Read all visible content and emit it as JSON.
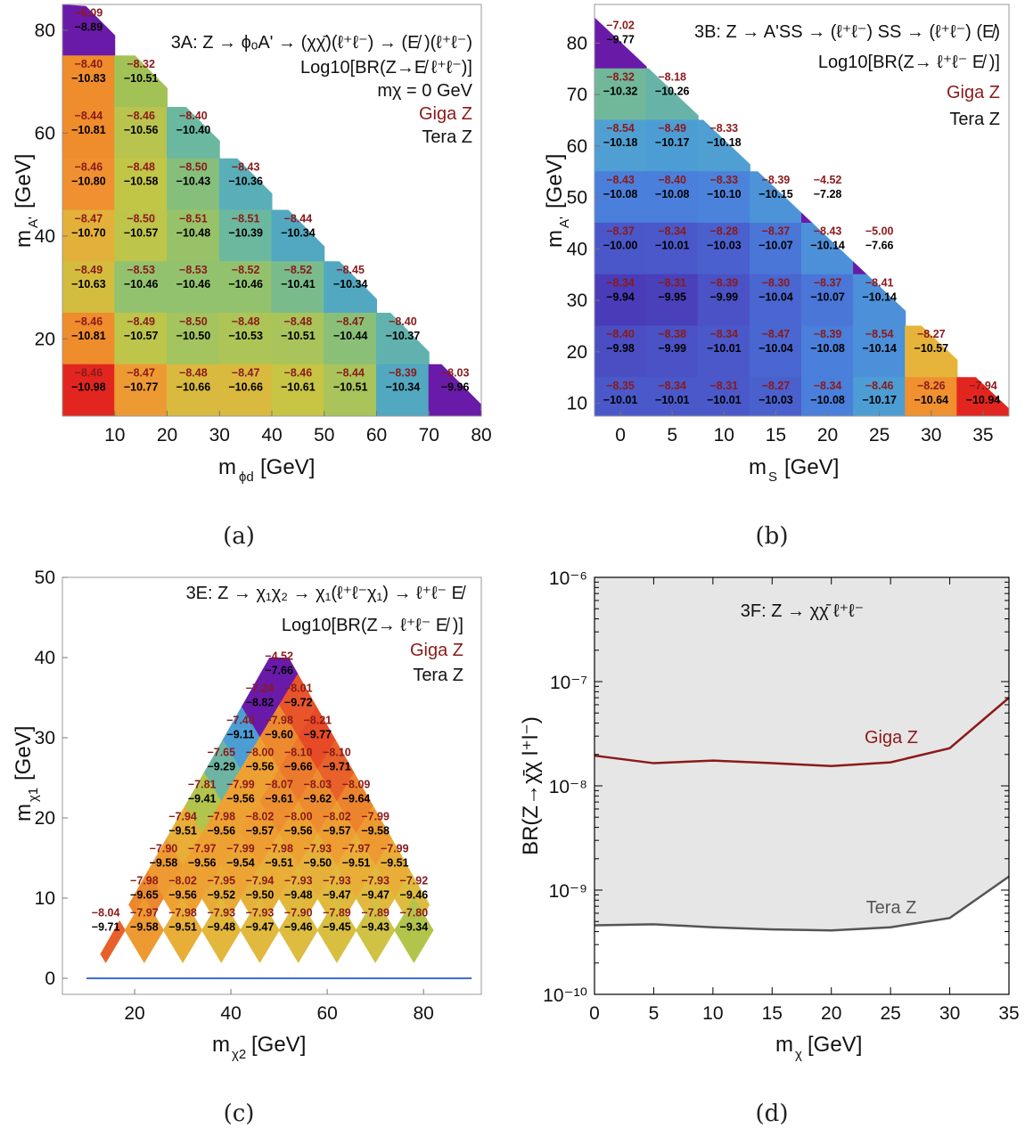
{
  "captions": [
    "(a)",
    "(b)",
    "(c)",
    "(d)"
  ],
  "chart_data": [
    {
      "id": "a",
      "type": "heatmap",
      "xlabel": "m",
      "xlabel_sub": "ϕd",
      "xlabel_unit": "[GeV]",
      "ylabel": "m",
      "ylabel_sub": "A'",
      "ylabel_unit": "[GeV]",
      "xlim": [
        0,
        80
      ],
      "ylim": [
        5,
        85
      ],
      "xticks": [
        10,
        20,
        30,
        40,
        50,
        60,
        70,
        80
      ],
      "yticks": [
        20,
        40,
        60,
        80
      ],
      "annotations": [
        "3A: Z → ϕₒA' → (χχ̄)(ℓ⁺ℓ⁻)  →  (E̸ )(ℓ⁺ℓ⁻)",
        "Log10[BR(Z→E̸ ℓ⁺ℓ⁻)]",
        "mχ = 0 GeV",
        "Giga Z",
        "Tera Z"
      ],
      "cells": [
        {
          "x": 5,
          "y": 80,
          "g": "−6.09",
          "t": "−8.89",
          "c": "#6a1aa8"
        },
        {
          "x": 5,
          "y": 70,
          "g": "−8.40",
          "t": "−10.83",
          "c": "#ef8c2c"
        },
        {
          "x": 15,
          "y": 70,
          "g": "−8.32",
          "t": "−10.51",
          "c": "#a3c255"
        },
        {
          "x": 5,
          "y": 60,
          "g": "−8.44",
          "t": "−10.81",
          "c": "#ef8c2c"
        },
        {
          "x": 15,
          "y": 60,
          "g": "−8.46",
          "t": "−10.56",
          "c": "#b8c44d"
        },
        {
          "x": 25,
          "y": 60,
          "g": "−8.40",
          "t": "−10.40",
          "c": "#6bb8a0"
        },
        {
          "x": 5,
          "y": 50,
          "g": "−8.46",
          "t": "−10.80",
          "c": "#f09030"
        },
        {
          "x": 15,
          "y": 50,
          "g": "−8.48",
          "t": "−10.58",
          "c": "#c2c647"
        },
        {
          "x": 25,
          "y": 50,
          "g": "−8.50",
          "t": "−10.43",
          "c": "#86bf7c"
        },
        {
          "x": 35,
          "y": 50,
          "g": "−8.43",
          "t": "−10.36",
          "c": "#5aaeb8"
        },
        {
          "x": 5,
          "y": 40,
          "g": "−8.47",
          "t": "−10.70",
          "c": "#e3b13a"
        },
        {
          "x": 15,
          "y": 40,
          "g": "−8.50",
          "t": "−10.57",
          "c": "#bdc54a"
        },
        {
          "x": 25,
          "y": 40,
          "g": "−8.51",
          "t": "−10.48",
          "c": "#98c268"
        },
        {
          "x": 35,
          "y": 40,
          "g": "−8.51",
          "t": "−10.39",
          "c": "#6cb89f"
        },
        {
          "x": 45,
          "y": 40,
          "g": "−8.44",
          "t": "−10.34",
          "c": "#51a8c0"
        },
        {
          "x": 5,
          "y": 30,
          "g": "−8.49",
          "t": "−10.63",
          "c": "#d4bd3e"
        },
        {
          "x": 15,
          "y": 30,
          "g": "−8.53",
          "t": "−10.46",
          "c": "#93c26e"
        },
        {
          "x": 25,
          "y": 30,
          "g": "−8.53",
          "t": "−10.46",
          "c": "#93c26e"
        },
        {
          "x": 35,
          "y": 30,
          "g": "−8.52",
          "t": "−10.46",
          "c": "#93c26e"
        },
        {
          "x": 45,
          "y": 30,
          "g": "−8.52",
          "t": "−10.41",
          "c": "#7abb8c"
        },
        {
          "x": 55,
          "y": 30,
          "g": "−8.45",
          "t": "−10.34",
          "c": "#51a8c0"
        },
        {
          "x": 5,
          "y": 20,
          "g": "−8.46",
          "t": "−10.81",
          "c": "#ef8c2c"
        },
        {
          "x": 15,
          "y": 20,
          "g": "−8.49",
          "t": "−10.57",
          "c": "#bdc54a"
        },
        {
          "x": 25,
          "y": 20,
          "g": "−8.50",
          "t": "−10.50",
          "c": "#a3c45e"
        },
        {
          "x": 35,
          "y": 20,
          "g": "−8.48",
          "t": "−10.53",
          "c": "#adc556"
        },
        {
          "x": 45,
          "y": 20,
          "g": "−8.48",
          "t": "−10.51",
          "c": "#a8c45a"
        },
        {
          "x": 55,
          "y": 20,
          "g": "−8.47",
          "t": "−10.44",
          "c": "#8abf78"
        },
        {
          "x": 65,
          "y": 20,
          "g": "−8.40",
          "t": "−10.37",
          "c": "#61b2ae"
        },
        {
          "x": 5,
          "y": 10,
          "g": "−8.46",
          "t": "−10.98",
          "c": "#e2261f"
        },
        {
          "x": 15,
          "y": 10,
          "g": "−8.47",
          "t": "−10.77",
          "c": "#ee9a33"
        },
        {
          "x": 25,
          "y": 10,
          "g": "−8.48",
          "t": "−10.66",
          "c": "#d9ba3f"
        },
        {
          "x": 35,
          "y": 10,
          "g": "−8.47",
          "t": "−10.66",
          "c": "#d9ba3f"
        },
        {
          "x": 45,
          "y": 10,
          "g": "−8.46",
          "t": "−10.61",
          "c": "#c8c444"
        },
        {
          "x": 55,
          "y": 10,
          "g": "−8.44",
          "t": "−10.51",
          "c": "#a8c45a"
        },
        {
          "x": 65,
          "y": 10,
          "g": "−8.39",
          "t": "−10.34",
          "c": "#51a8c0"
        },
        {
          "x": 75,
          "y": 10,
          "g": "−8.03",
          "t": "−9.96",
          "c": "#6a1aa8"
        }
      ]
    },
    {
      "id": "b",
      "type": "heatmap",
      "xlabel": "m",
      "xlabel_sub": "S",
      "xlabel_unit": "[GeV]",
      "ylabel": "m",
      "ylabel_sub": "A'",
      "ylabel_unit": "[GeV]",
      "xlim": [
        -2.5,
        37.5
      ],
      "ylim": [
        7.5,
        87.5
      ],
      "xticks": [
        0,
        5,
        10,
        15,
        20,
        25,
        30,
        35
      ],
      "yticks": [
        10,
        20,
        30,
        40,
        50,
        60,
        70,
        80
      ],
      "annotations": [
        "3B: Z → A'SS → (ℓ⁺ℓ⁻) SS → (ℓ⁺ℓ⁻) (E̸)",
        "Log10[BR(Z→ ℓ⁺ℓ⁻ E̸ )]",
        "Giga Z",
        "Tera Z"
      ],
      "cells": [
        {
          "x": 0,
          "y": 80,
          "g": "−7.02",
          "t": "−9.77",
          "c": "#6a1aa8"
        },
        {
          "x": 0,
          "y": 70,
          "g": "−8.32",
          "t": "−10.32",
          "c": "#71b89b"
        },
        {
          "x": 5,
          "y": 70,
          "g": "−8.18",
          "t": "−10.26",
          "c": "#67b3a8"
        },
        {
          "x": 0,
          "y": 60,
          "g": "−8.54",
          "t": "−10.18",
          "c": "#4f9fd2"
        },
        {
          "x": 5,
          "y": 60,
          "g": "−8.49",
          "t": "−10.17",
          "c": "#4d9dd5"
        },
        {
          "x": 10,
          "y": 60,
          "g": "−8.33",
          "t": "−10.18",
          "c": "#4f9fd2"
        },
        {
          "x": 0,
          "y": 50,
          "g": "−8.43",
          "t": "−10.08",
          "c": "#4a7fdb"
        },
        {
          "x": 5,
          "y": 50,
          "g": "−8.40",
          "t": "−10.08",
          "c": "#4a7fdb"
        },
        {
          "x": 10,
          "y": 50,
          "g": "−8.33",
          "t": "−10.10",
          "c": "#4b83dc"
        },
        {
          "x": 15,
          "y": 50,
          "g": "−8.39",
          "t": "−10.15",
          "c": "#4c93d8"
        },
        {
          "x": 20,
          "y": 50,
          "g": "−4.52",
          "t": "−7.28",
          "c": "#6a1aa8"
        },
        {
          "x": 0,
          "y": 40,
          "g": "−8.37",
          "t": "−10.00",
          "c": "#4a57c8"
        },
        {
          "x": 5,
          "y": 40,
          "g": "−8.34",
          "t": "−10.01",
          "c": "#4a58c9"
        },
        {
          "x": 10,
          "y": 40,
          "g": "−8.28",
          "t": "−10.03",
          "c": "#4a60cd"
        },
        {
          "x": 15,
          "y": 40,
          "g": "−8.37",
          "t": "−10.07",
          "c": "#4a76d8"
        },
        {
          "x": 20,
          "y": 40,
          "g": "−8.43",
          "t": "−10.14",
          "c": "#4c90d9"
        },
        {
          "x": 25,
          "y": 40,
          "g": "−5.00",
          "t": "−7.66",
          "c": "#6a1aa8"
        },
        {
          "x": 0,
          "y": 30,
          "g": "−8.34",
          "t": "−9.94",
          "c": "#4a3cb8"
        },
        {
          "x": 5,
          "y": 30,
          "g": "−8.31",
          "t": "−9.95",
          "c": "#4a40ba"
        },
        {
          "x": 10,
          "y": 30,
          "g": "−8.39",
          "t": "−9.99",
          "c": "#4a52c5"
        },
        {
          "x": 15,
          "y": 30,
          "g": "−8.30",
          "t": "−10.04",
          "c": "#4a66d0"
        },
        {
          "x": 20,
          "y": 30,
          "g": "−8.37",
          "t": "−10.07",
          "c": "#4a76d8"
        },
        {
          "x": 25,
          "y": 30,
          "g": "−8.41",
          "t": "−10.14",
          "c": "#4c90d9"
        },
        {
          "x": 0,
          "y": 20,
          "g": "−8.40",
          "t": "−9.98",
          "c": "#4a4ec2"
        },
        {
          "x": 5,
          "y": 20,
          "g": "−8.38",
          "t": "−9.99",
          "c": "#4a52c5"
        },
        {
          "x": 10,
          "y": 20,
          "g": "−8.34",
          "t": "−10.01",
          "c": "#4a58c9"
        },
        {
          "x": 15,
          "y": 20,
          "g": "−8.47",
          "t": "−10.04",
          "c": "#4a66d0"
        },
        {
          "x": 20,
          "y": 20,
          "g": "−8.39",
          "t": "−10.08",
          "c": "#4a7fdb"
        },
        {
          "x": 25,
          "y": 20,
          "g": "−8.54",
          "t": "−10.14",
          "c": "#4c90d9"
        },
        {
          "x": 30,
          "y": 20,
          "g": "−8.27",
          "t": "−10.57",
          "c": "#e6b43a"
        },
        {
          "x": 0,
          "y": 10,
          "g": "−8.35",
          "t": "−10.01",
          "c": "#4a58c9"
        },
        {
          "x": 5,
          "y": 10,
          "g": "−8.34",
          "t": "−10.01",
          "c": "#4a58c9"
        },
        {
          "x": 10,
          "y": 10,
          "g": "−8.31",
          "t": "−10.01",
          "c": "#4a58c9"
        },
        {
          "x": 15,
          "y": 10,
          "g": "−8.27",
          "t": "−10.03",
          "c": "#4a60cd"
        },
        {
          "x": 20,
          "y": 10,
          "g": "−8.34",
          "t": "−10.08",
          "c": "#4a7fdb"
        },
        {
          "x": 25,
          "y": 10,
          "g": "−8.46",
          "t": "−10.17",
          "c": "#4d9dd5"
        },
        {
          "x": 30,
          "y": 10,
          "g": "−8.26",
          "t": "−10.64",
          "c": "#f0902e"
        },
        {
          "x": 35,
          "y": 10,
          "g": "−7.94",
          "t": "−10.94",
          "c": "#e2261f"
        }
      ]
    },
    {
      "id": "c",
      "type": "heatmap",
      "xlabel": "m",
      "xlabel_sub": "χ2",
      "xlabel_unit": "[GeV]",
      "ylabel": "m",
      "ylabel_sub": "χ1",
      "ylabel_unit": "[GeV]",
      "xlim": [
        5,
        92
      ],
      "ylim": [
        -2,
        50
      ],
      "xticks": [
        20,
        40,
        60,
        80
      ],
      "yticks": [
        0,
        10,
        20,
        30,
        40,
        50
      ],
      "annotations": [
        "3E: Z → χ₁χ₂  →  χ₁(ℓ⁺ℓ⁻χ₁)  →  ℓ⁺ℓ⁻ E̸",
        "Log10[BR(Z→  ℓ⁺ℓ⁻ E̸ )]",
        "Giga Z",
        "Tera Z"
      ],
      "cells": [
        {
          "x": 50,
          "y": 38,
          "g": "−4.52",
          "t": "−7.66",
          "c": "#6a1aa8"
        },
        {
          "x": 46,
          "y": 34,
          "g": "−7.24",
          "t": "−8.82",
          "c": "#6a1aa8"
        },
        {
          "x": 54,
          "y": 34,
          "g": "−8.01",
          "t": "−9.72",
          "c": "#e8552a"
        },
        {
          "x": 42,
          "y": 30,
          "g": "−7.40",
          "t": "−9.11",
          "c": "#4d9dd5"
        },
        {
          "x": 50,
          "y": 30,
          "g": "−7.98",
          "t": "−9.60",
          "c": "#ed8a2f"
        },
        {
          "x": 58,
          "y": 30,
          "g": "−8.21",
          "t": "−9.77",
          "c": "#e64a26"
        },
        {
          "x": 38,
          "y": 26,
          "g": "−7.65",
          "t": "−9.29",
          "c": "#6db5a2"
        },
        {
          "x": 46,
          "y": 26,
          "g": "−8.00",
          "t": "−9.56",
          "c": "#eea133"
        },
        {
          "x": 54,
          "y": 26,
          "g": "−8.10",
          "t": "−9.66",
          "c": "#eb7a2c"
        },
        {
          "x": 62,
          "y": 26,
          "g": "−8.10",
          "t": "−9.71",
          "c": "#e8602a"
        },
        {
          "x": 34,
          "y": 22,
          "g": "−7.81",
          "t": "−9.41",
          "c": "#b3c44d"
        },
        {
          "x": 42,
          "y": 22,
          "g": "−7.99",
          "t": "−9.56",
          "c": "#eea133"
        },
        {
          "x": 50,
          "y": 22,
          "g": "−8.07",
          "t": "−9.61",
          "c": "#ed8f30"
        },
        {
          "x": 58,
          "y": 22,
          "g": "−8.03",
          "t": "−9.62",
          "c": "#ed8c2f"
        },
        {
          "x": 66,
          "y": 22,
          "g": "−8.09",
          "t": "−9.64",
          "c": "#ec842e"
        },
        {
          "x": 30,
          "y": 18,
          "g": "−7.94",
          "t": "−9.51",
          "c": "#e8ae38"
        },
        {
          "x": 38,
          "y": 18,
          "g": "−7.98",
          "t": "−9.56",
          "c": "#eea133"
        },
        {
          "x": 46,
          "y": 18,
          "g": "−8.02",
          "t": "−9.57",
          "c": "#ee9d32"
        },
        {
          "x": 54,
          "y": 18,
          "g": "−8.00",
          "t": "−9.56",
          "c": "#eea133"
        },
        {
          "x": 62,
          "y": 18,
          "g": "−8.02",
          "t": "−9.57",
          "c": "#ee9d32"
        },
        {
          "x": 70,
          "y": 18,
          "g": "−7.99",
          "t": "−9.58",
          "c": "#ee9a32"
        },
        {
          "x": 26,
          "y": 14,
          "g": "−7.90",
          "t": "−9.58",
          "c": "#ee9a32"
        },
        {
          "x": 34,
          "y": 14,
          "g": "−7.97",
          "t": "−9.56",
          "c": "#eea133"
        },
        {
          "x": 42,
          "y": 14,
          "g": "−7.99",
          "t": "−9.54",
          "c": "#eca535"
        },
        {
          "x": 50,
          "y": 14,
          "g": "−7.98",
          "t": "−9.51",
          "c": "#e8ae38"
        },
        {
          "x": 58,
          "y": 14,
          "g": "−7.93",
          "t": "−9.50",
          "c": "#e6b13a"
        },
        {
          "x": 66,
          "y": 14,
          "g": "−7.97",
          "t": "−9.51",
          "c": "#e8ae38"
        },
        {
          "x": 74,
          "y": 14,
          "g": "−7.99",
          "t": "−9.51",
          "c": "#e8ae38"
        },
        {
          "x": 22,
          "y": 10,
          "g": "−7.98",
          "t": "−9.65",
          "c": "#ec882e"
        },
        {
          "x": 30,
          "y": 10,
          "g": "−8.02",
          "t": "−9.56",
          "c": "#eea133"
        },
        {
          "x": 38,
          "y": 10,
          "g": "−7.95",
          "t": "−9.52",
          "c": "#e9ab37"
        },
        {
          "x": 46,
          "y": 10,
          "g": "−7.94",
          "t": "−9.50",
          "c": "#e6b13a"
        },
        {
          "x": 54,
          "y": 10,
          "g": "−7.93",
          "t": "−9.48",
          "c": "#e3b63c"
        },
        {
          "x": 62,
          "y": 10,
          "g": "−7.93",
          "t": "−9.47",
          "c": "#e0b93e"
        },
        {
          "x": 70,
          "y": 10,
          "g": "−7.93",
          "t": "−9.47",
          "c": "#e0b93e"
        },
        {
          "x": 78,
          "y": 10,
          "g": "−7.92",
          "t": "−9.46",
          "c": "#ddbc40"
        },
        {
          "x": 14,
          "y": 6,
          "g": "−8.04",
          "t": "−9.71",
          "c": "#e8602a"
        },
        {
          "x": 22,
          "y": 6,
          "g": "−7.97",
          "t": "−9.58",
          "c": "#ee9a32"
        },
        {
          "x": 30,
          "y": 6,
          "g": "−7.98",
          "t": "−9.51",
          "c": "#e8ae38"
        },
        {
          "x": 38,
          "y": 6,
          "g": "−7.93",
          "t": "−9.48",
          "c": "#e3b63c"
        },
        {
          "x": 46,
          "y": 6,
          "g": "−7.93",
          "t": "−9.47",
          "c": "#e0b93e"
        },
        {
          "x": 54,
          "y": 6,
          "g": "−7.90",
          "t": "−9.46",
          "c": "#ddbc40"
        },
        {
          "x": 62,
          "y": 6,
          "g": "−7.89",
          "t": "−9.45",
          "c": "#d8bf42"
        },
        {
          "x": 70,
          "y": 6,
          "g": "−7.89",
          "t": "−9.43",
          "c": "#cfc245"
        },
        {
          "x": 78,
          "y": 6,
          "g": "−7.80",
          "t": "−9.34",
          "c": "#b3c44d"
        }
      ]
    },
    {
      "id": "d",
      "type": "area",
      "xlabel": "m",
      "xlabel_sub": "χ",
      "xlabel_unit": "[GeV]",
      "ylabel": "BR(Z→χ̄χ l⁺l⁻)",
      "xlim": [
        0,
        35
      ],
      "ylim_log10": [
        -10,
        -6
      ],
      "xticks": [
        0,
        5,
        10,
        15,
        20,
        25,
        30,
        35
      ],
      "yticks_label": [
        "10⁻¹⁰",
        "10⁻⁹",
        "10⁻⁸",
        "10⁻⁷",
        "10⁻⁶"
      ],
      "annotation": "3F: Z → χχ̄ ℓ⁺ℓ⁻",
      "x": [
        0,
        5,
        10,
        15,
        20,
        25,
        30,
        35
      ],
      "series": [
        {
          "name": "Giga Z",
          "color": "#8b1a1a",
          "fill": "#f1dcdc",
          "values": [
            1.95e-08,
            1.65e-08,
            1.75e-08,
            1.65e-08,
            1.55e-08,
            1.68e-08,
            2.3e-08,
            7e-08
          ]
        },
        {
          "name": "Tera Z",
          "color": "#555555",
          "fill": "#e6e6e6",
          "values": [
            4.6e-10,
            4.7e-10,
            4.4e-10,
            4.2e-10,
            4.1e-10,
            4.4e-10,
            5.4e-10,
            1.35e-09
          ]
        }
      ]
    }
  ]
}
